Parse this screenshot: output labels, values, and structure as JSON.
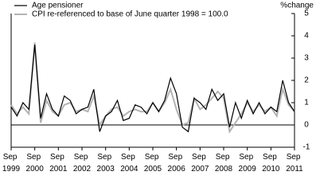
{
  "chart_data": {
    "type": "line",
    "y_axis_label": "%change",
    "categories": [
      "Sep 1999",
      null,
      null,
      null,
      "Sep 2000",
      null,
      null,
      null,
      "Sep 2001",
      null,
      null,
      null,
      "Sep 2002",
      null,
      null,
      null,
      "Sep 2003",
      null,
      null,
      null,
      "Sep 2004",
      null,
      null,
      null,
      "Sep 2005",
      null,
      null,
      null,
      "Sep 2006",
      null,
      null,
      null,
      "Sep 2007",
      null,
      null,
      null,
      "Sep 2008",
      null,
      null,
      null,
      "Sep 2009",
      null,
      null,
      null,
      "Sep 2010",
      null,
      null,
      null,
      "Sep 2011"
    ],
    "series": [
      {
        "name": "Age pensioner",
        "color": "#000000",
        "values": [
          0.8,
          0.4,
          1.0,
          0.7,
          3.6,
          0.3,
          1.4,
          0.7,
          0.4,
          1.3,
          1.1,
          0.5,
          0.7,
          0.8,
          1.6,
          -0.3,
          0.4,
          0.6,
          1.1,
          0.2,
          0.3,
          0.9,
          0.8,
          0.5,
          1.0,
          0.6,
          1.1,
          2.1,
          1.4,
          -0.1,
          -0.3,
          1.2,
          1.0,
          0.7,
          1.6,
          1.1,
          1.4,
          -0.1,
          1.0,
          0.3,
          1.1,
          0.5,
          1.0,
          0.5,
          0.8,
          0.6,
          2.0,
          1.0,
          0.6
        ]
      },
      {
        "name": "CPI re-referenced to base of June quarter 1998 = 100.0",
        "color": "#b3b3b3",
        "values": [
          0.9,
          0.5,
          0.8,
          0.5,
          3.7,
          0.1,
          1.1,
          0.6,
          0.4,
          0.9,
          1.0,
          0.6,
          0.7,
          0.6,
          1.3,
          0.0,
          0.4,
          0.7,
          0.8,
          0.4,
          0.6,
          0.7,
          0.6,
          0.6,
          1.0,
          0.6,
          1.0,
          1.6,
          0.7,
          0.0,
          0.1,
          1.2,
          0.7,
          0.9,
          1.2,
          1.5,
          1.2,
          -0.3,
          0.1,
          0.5,
          1.0,
          0.6,
          0.9,
          0.6,
          0.8,
          0.4,
          1.6,
          0.9,
          0.6
        ]
      }
    ],
    "ylim": [
      -1,
      5
    ],
    "yticks": [
      -1,
      0,
      1,
      2,
      3,
      4,
      5
    ]
  }
}
